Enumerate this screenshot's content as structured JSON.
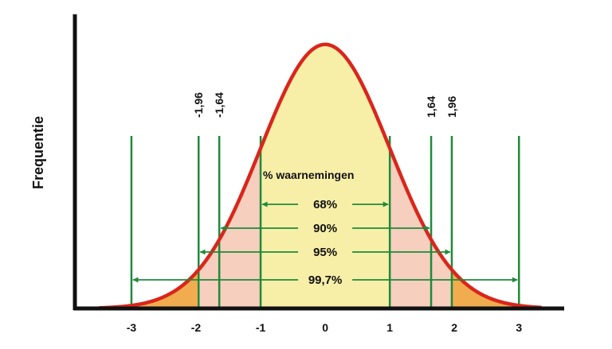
{
  "chart_data": {
    "type": "area",
    "title": "",
    "xlabel": "",
    "ylabel": "Frequentie",
    "xlim": [
      -3.9,
      3.7
    ],
    "ylim": [
      0,
      0.43
    ],
    "x_ticks": [
      "-3",
      "-2",
      "-1",
      "0",
      "1",
      "2",
      "3"
    ],
    "x_tick_values": [
      -3,
      -2,
      -1,
      0,
      1,
      2,
      3
    ],
    "curve": {
      "type": "normal",
      "mean": 0,
      "sd": 1
    },
    "region_colors": {
      "center": "#f7efa8",
      "middle": "#f6cfbe",
      "tails": "#f1ac4f"
    },
    "curve_color": "#d9261c",
    "marker_color": "#1f8a3a",
    "vertical_lines": [
      -3,
      -1.96,
      -1.64,
      -1,
      1,
      1.64,
      1.96,
      3
    ],
    "z_labels": [
      {
        "value": -1.96,
        "text": "-1,96"
      },
      {
        "value": -1.64,
        "text": "-1,64"
      },
      {
        "value": 1.64,
        "text": "1,64"
      },
      {
        "value": 1.96,
        "text": "1,96"
      }
    ],
    "annotation": "% waarnemingen",
    "intervals": [
      {
        "from": -1,
        "to": 1,
        "label": "68%"
      },
      {
        "from": -1.64,
        "to": 1.64,
        "label": "90%"
      },
      {
        "from": -1.96,
        "to": 1.96,
        "label": "95%"
      },
      {
        "from": -3,
        "to": 3,
        "label": "99,7%"
      }
    ]
  }
}
